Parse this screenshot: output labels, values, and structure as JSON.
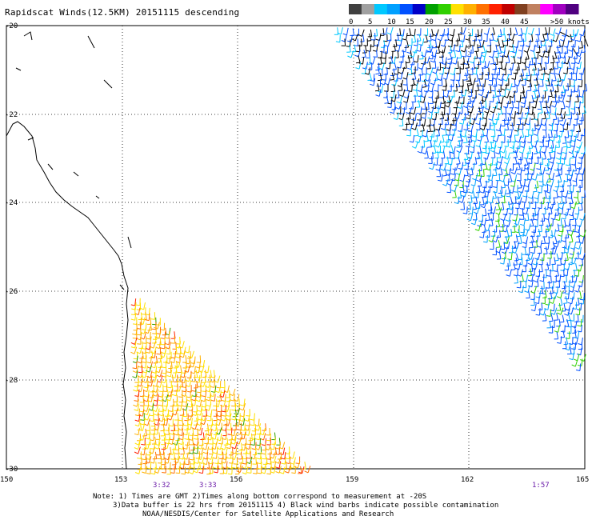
{
  "title": "Rapidscat Winds(12.5KM) 20151115 descending",
  "legend": {
    "colors": [
      "#404040",
      "#a0a0a0",
      "#00c8ff",
      "#00a0ff",
      "#0050ff",
      "#0000c8",
      "#00a000",
      "#30d000",
      "#ffe000",
      "#ffb000",
      "#ff7000",
      "#ff2000",
      "#c00000",
      "#804020",
      "#c08060",
      "#ff00ff",
      "#a000c0",
      "#500080"
    ],
    "labels": [
      "0",
      "5",
      "10",
      "15",
      "20",
      "25",
      "30",
      "35",
      "40",
      "45",
      ">50 knots"
    ]
  },
  "axes": {
    "lon_labels": [
      "150",
      "153",
      "156",
      "159",
      "162",
      "165"
    ],
    "lat_labels": [
      "-20",
      "-22",
      "-24",
      "-26",
      "-28",
      "-30"
    ]
  },
  "times": [
    "3:32",
    "3:33",
    "1:57"
  ],
  "notes": [
    "Note: 1) Times are GMT 2)Times along bottom correspond to measurement at -20S",
    "3)Data buffer is 22 hrs from 20151115 4) Black wind barbs indicate possible contamination",
    "NOAA/NESDIS/Center for Satellite Applications and Research"
  ]
}
